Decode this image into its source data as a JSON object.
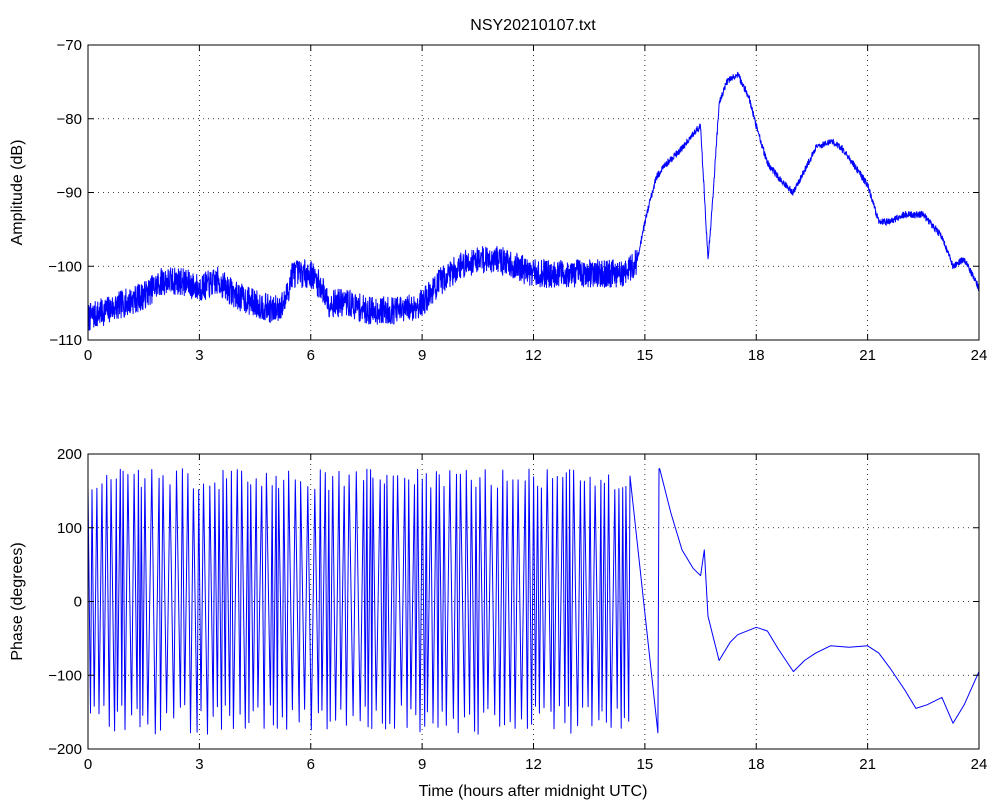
{
  "figure": {
    "title": "NSY20210107.txt",
    "xlabel": "Time (hours after midnight UTC)"
  },
  "chart_data": [
    {
      "type": "line",
      "title": "NSY20210107.txt",
      "xlabel": "",
      "ylabel": "Amplitude (dB)",
      "xlim": [
        0,
        24
      ],
      "ylim": [
        -110,
        -70
      ],
      "xticks": [
        "0",
        "3",
        "6",
        "9",
        "12",
        "15",
        "18",
        "21",
        "24"
      ],
      "yticks": [
        "−110",
        "−100",
        "−90",
        "−80",
        "−70"
      ],
      "grid": true,
      "line_color": "#0000ff",
      "x": [
        0,
        0.5,
        1,
        1.5,
        2,
        2.5,
        3,
        3.5,
        4,
        4.5,
        5,
        5.3,
        5.5,
        6,
        6.3,
        6.5,
        7,
        7.5,
        8,
        8.5,
        9,
        9.5,
        10,
        10.5,
        11,
        11.5,
        12,
        12.5,
        13,
        13.5,
        14,
        14.5,
        14.8,
        15,
        15.3,
        15.6,
        16,
        16.3,
        16.5,
        16.7,
        16.8,
        17,
        17.2,
        17.5,
        17.8,
        18,
        18.3,
        18.6,
        19,
        19.3,
        19.6,
        20,
        20.3,
        20.6,
        21,
        21.3,
        21.6,
        22,
        22.5,
        23,
        23.3,
        23.6,
        24
      ],
      "y": [
        -107,
        -106,
        -105,
        -104,
        -102,
        -102,
        -103,
        -102,
        -104,
        -105,
        -106,
        -105,
        -101,
        -101,
        -103,
        -105,
        -105,
        -106,
        -106,
        -106,
        -105,
        -102,
        -100,
        -99,
        -99,
        -100,
        -101,
        -101,
        -101,
        -101,
        -101,
        -101,
        -99,
        -94,
        -88,
        -86,
        -84,
        -82,
        -81,
        -99,
        -93,
        -78,
        -75,
        -74,
        -77,
        -81,
        -86,
        -88,
        -90,
        -87,
        -84,
        -83,
        -84,
        -86,
        -89,
        -94,
        -94,
        -93,
        -93,
        -96,
        -100,
        -99,
        -103
      ]
    },
    {
      "type": "line",
      "title": "",
      "xlabel": "Time (hours after midnight UTC)",
      "ylabel": "Phase (degrees)",
      "xlim": [
        0,
        24
      ],
      "ylim": [
        -200,
        200
      ],
      "xticks": [
        "0",
        "3",
        "6",
        "9",
        "12",
        "15",
        "18",
        "21",
        "24"
      ],
      "yticks": [
        "−200",
        "−100",
        "0",
        "100",
        "200"
      ],
      "grid": true,
      "line_color": "#0000ff",
      "x": [
        15.4,
        15.7,
        16,
        16.3,
        16.5,
        16.6,
        16.7,
        17,
        17.3,
        17.5,
        18,
        18.3,
        18.6,
        19,
        19.3,
        19.6,
        20,
        20.5,
        21,
        21.3,
        21.6,
        22,
        22.3,
        22.6,
        23,
        23.3,
        23.6,
        24
      ],
      "y": [
        180,
        120,
        70,
        45,
        35,
        70,
        -20,
        -80,
        -55,
        -45,
        -35,
        -40,
        -65,
        -95,
        -80,
        -70,
        -60,
        -62,
        -60,
        -70,
        -90,
        -120,
        -145,
        -140,
        -130,
        -165,
        -140,
        -95
      ]
    }
  ]
}
